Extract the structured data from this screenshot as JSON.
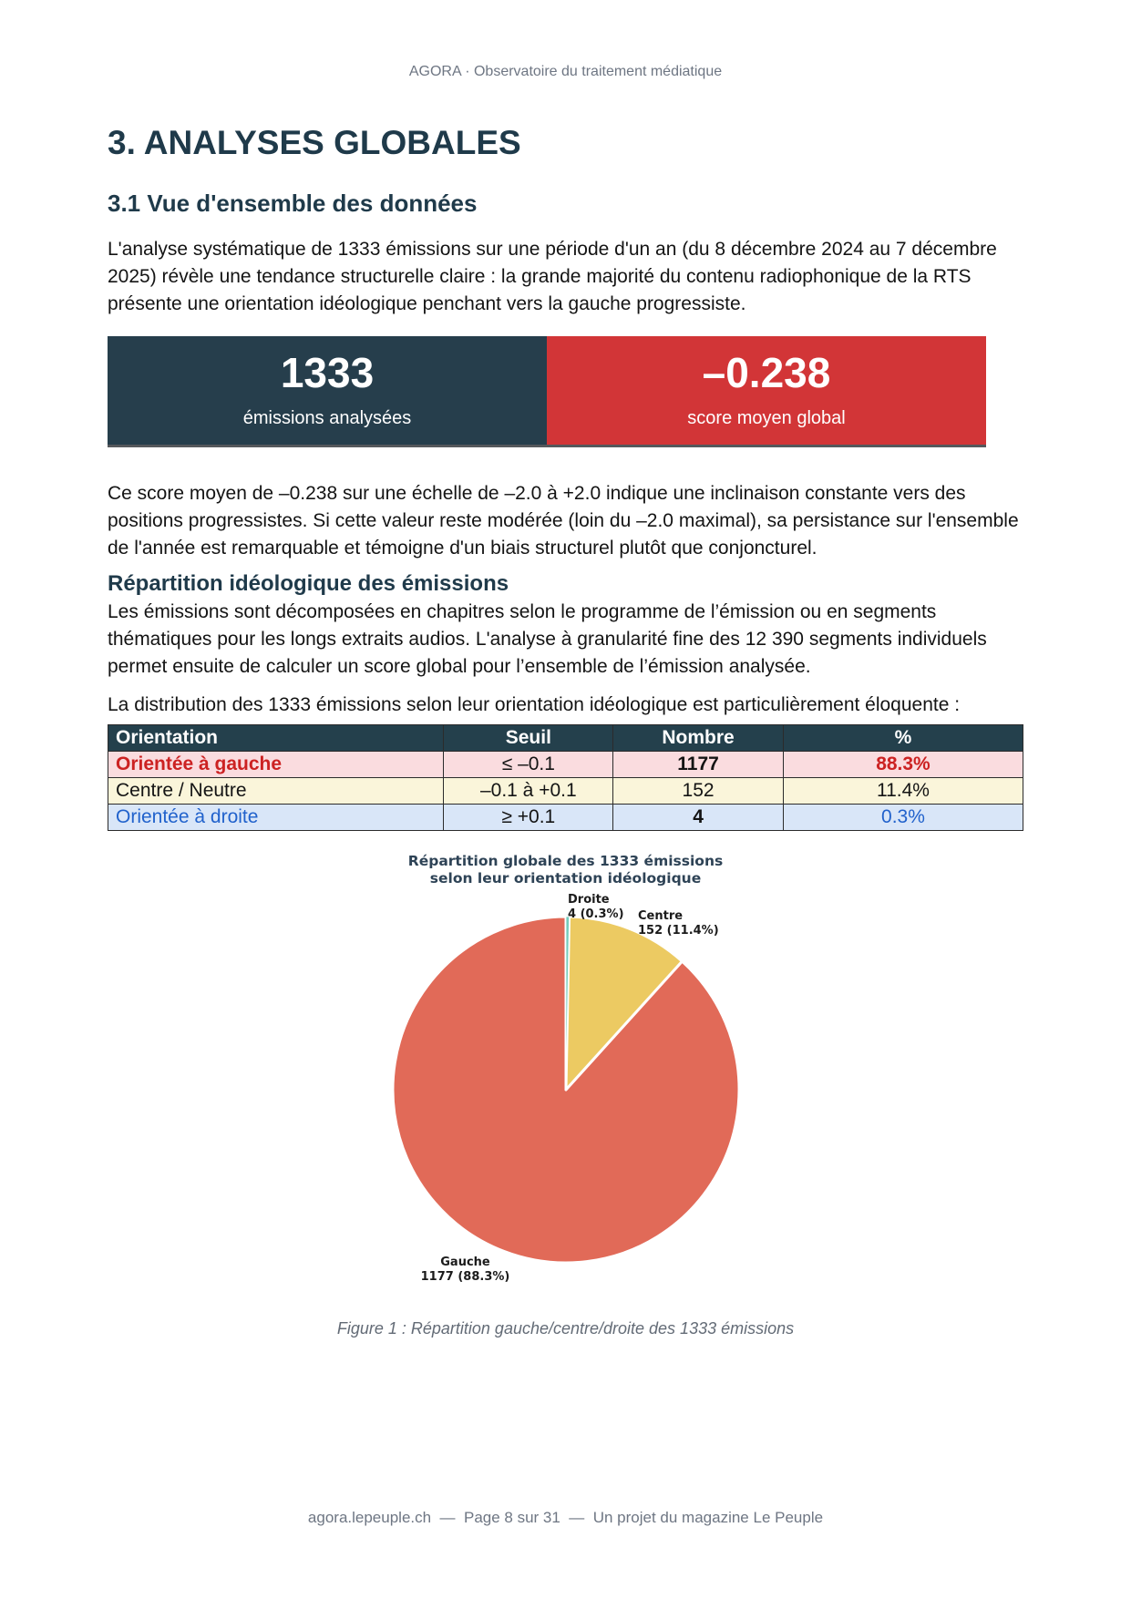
{
  "page_header": "AGORA · Observatoire du traitement médiatique",
  "title": "3. ANALYSES GLOBALES",
  "section": {
    "heading": "3.1 Vue d'ensemble des données",
    "paragraph1": "L'analyse systématique de 1333 émissions sur une période d'un an (du 8 décembre 2024 au 7 décembre 2025) révèle une tendance structurelle claire : la grande majorité du contenu radiophonique de la RTS présente une orientation idéologique penchant vers la gauche progressiste.",
    "paragraph2": "Ce score moyen de –0.238 sur une échelle de –2.0 à +2.0 indique une inclinaison constante vers des positions progressistes. Si cette valeur reste modérée (loin du –2.0 maximal), sa persistance sur l'ensemble de l'année est remarquable et témoigne d'un biais structurel plutôt que conjoncturel."
  },
  "stats": [
    {
      "value": "1333",
      "label": "émissions analysées",
      "bg": "#263e4c"
    },
    {
      "value": "–0.238",
      "label": "score moyen global",
      "bg": "#d23537"
    }
  ],
  "subsection": {
    "heading": "Répartition idéologique des émissions",
    "paragraph3": "Les émissions sont décomposées en chapitres selon le programme de l’émission ou en segments thématiques pour les longs extraits audios. L'analyse à granularité fine des 12 390 segments individuels permet ensuite de calculer un score global pour l’ensemble de l’émission analysée.",
    "paragraph4": "La distribution des 1333 émissions selon leur orientation idéologique est particulièrement éloquente :"
  },
  "table": {
    "headers": [
      "Orientation",
      "Seuil",
      "Nombre",
      "%"
    ],
    "rows": [
      {
        "orientation": "Orientée à gauche",
        "seuil": "≤ –0.1",
        "nombre": "1177",
        "pct": "88.3%"
      },
      {
        "orientation": "Centre / Neutre",
        "seuil": "–0.1 à +0.1",
        "nombre": "152",
        "pct": "11.4%"
      },
      {
        "orientation": "Orientée à droite",
        "seuil": "≥ +0.1",
        "nombre": "4",
        "pct": "0.3%"
      }
    ]
  },
  "chart_data": {
    "type": "pie",
    "title": "Répartition globale des 1333 émissions\nselon leur orientation idéologique",
    "total": 1333,
    "start_angle": "top",
    "direction": "clockwise",
    "slices": [
      {
        "label": "Droite",
        "value": 4,
        "pct": 0.3,
        "display": "4 (0.3%)",
        "color": "#74ccbc"
      },
      {
        "label": "Centre",
        "value": 152,
        "pct": 11.4,
        "display": "152 (11.4%)",
        "color": "#ecca62"
      },
      {
        "label": "Gauche",
        "value": 1177,
        "pct": 88.3,
        "display": "1177 (88.3%)",
        "color": "#e16a58"
      }
    ]
  },
  "figure_caption": "Figure 1 : Répartition gauche/centre/droite des 1333 émissions",
  "page_footer": "agora.lepeuple.ch  —  Page 8 sur 31  —  Un projet du magazine Le Peuple",
  "colors": {
    "heading": "#1f3a4a",
    "stat_dark_bg": "#263e4c",
    "stat_red_bg": "#d23537",
    "table_header_bg": "#24404c",
    "row_gauche_bg": "#fadcdf",
    "row_gauche_text": "#cc2222",
    "row_centre_bg": "#faf5da",
    "row_droite_bg": "#d9e6f8",
    "row_droite_text": "#2162cc",
    "pie_gauche": "#e16a58",
    "pie_centre": "#ecca62",
    "pie_droite": "#74ccbc"
  }
}
